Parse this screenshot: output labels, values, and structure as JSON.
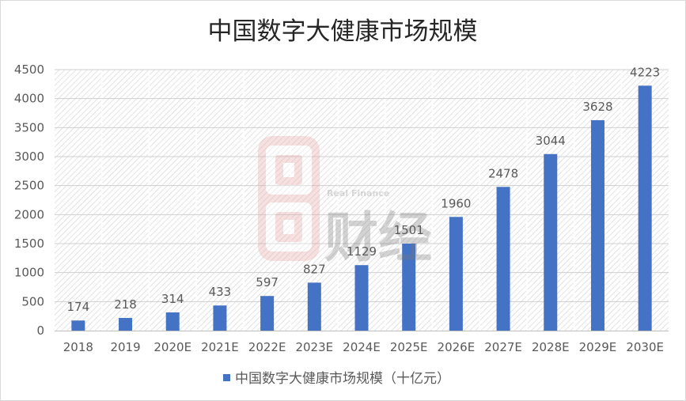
{
  "chart_data": {
    "type": "bar",
    "title": "中国数字大健康市场规模",
    "xlabel": "",
    "ylabel": "",
    "categories": [
      "2018",
      "2019",
      "2020E",
      "2021E",
      "2022E",
      "2023E",
      "2024E",
      "2025E",
      "2026E",
      "2027E",
      "2028E",
      "2029E",
      "2030E"
    ],
    "series": [
      {
        "name": "中国数字大健康市场规模（十亿元）",
        "values": [
          174,
          218,
          314,
          433,
          597,
          827,
          1129,
          1501,
          1960,
          2478,
          3044,
          3628,
          4223
        ],
        "color": "#4472C4"
      }
    ],
    "ylim": [
      0,
      4500
    ],
    "yticks": [
      0,
      500,
      1000,
      1500,
      2000,
      2500,
      3000,
      3500,
      4000,
      4500
    ],
    "grid": true,
    "data_labels": true,
    "legend": "bottom-center"
  },
  "watermark": {
    "brand_en": "Real Finance",
    "brand_cn": "财经",
    "logo_color": "#d9534f"
  }
}
